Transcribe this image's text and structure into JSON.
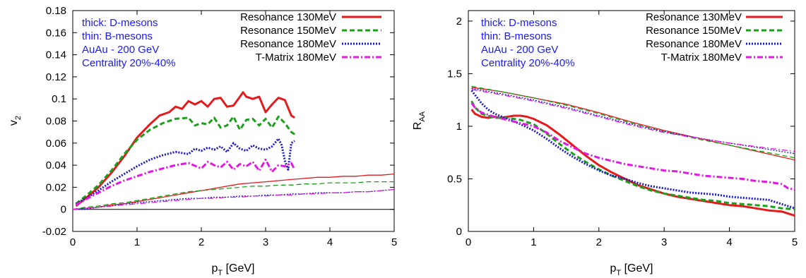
{
  "chart_data": [
    {
      "type": "line",
      "ylabel": {
        "main": "v",
        "sub": "2"
      },
      "xlabel": {
        "main": "p",
        "sub": "T",
        "rest": " [GeV]"
      },
      "xlim": [
        0,
        5
      ],
      "ylim": [
        -0.02,
        0.18
      ],
      "x_ticks": [
        0,
        1,
        2,
        3,
        4,
        5
      ],
      "x_tick_labels": [
        "0",
        "1",
        "2",
        "3",
        "4",
        "5"
      ],
      "y_ticks": [
        -0.02,
        0,
        0.02,
        0.04,
        0.06,
        0.08,
        0.1,
        0.12,
        0.14,
        0.16,
        0.18
      ],
      "y_tick_labels": [
        "-0.02",
        "0",
        "0.02",
        "0.04",
        "0.06",
        "0.08",
        "0.1",
        "0.12",
        "0.14",
        "0.16",
        "0.18"
      ],
      "zero_line": 0,
      "info_text": [
        "thick: D-mesons",
        "thin: B-mesons",
        "AuAu - 200 GeV",
        "Centrality 20%-40%"
      ],
      "legend_position": "top-right",
      "series": [
        {
          "name": "Resonance 130MeV",
          "meson": "D",
          "color": "#e41a1c",
          "dash": "solid",
          "x": [
            0.05,
            0.2,
            0.4,
            0.6,
            0.8,
            1.0,
            1.2,
            1.35,
            1.5,
            1.6,
            1.7,
            1.8,
            1.9,
            2.0,
            2.1,
            2.2,
            2.3,
            2.4,
            2.5,
            2.6,
            2.65,
            2.7,
            2.8,
            2.9,
            3.0,
            3.1,
            3.2,
            3.3,
            3.4,
            3.45
          ],
          "y": [
            0.003,
            0.01,
            0.02,
            0.033,
            0.048,
            0.065,
            0.077,
            0.085,
            0.088,
            0.093,
            0.091,
            0.098,
            0.095,
            0.098,
            0.093,
            0.1,
            0.101,
            0.093,
            0.094,
            0.102,
            0.106,
            0.102,
            0.1,
            0.102,
            0.088,
            0.095,
            0.101,
            0.099,
            0.085,
            0.083
          ]
        },
        {
          "name": "Resonance 150MeV",
          "meson": "D",
          "color": "#1aa01a",
          "dash": "dashed",
          "x": [
            0.05,
            0.2,
            0.4,
            0.6,
            0.8,
            1.0,
            1.2,
            1.4,
            1.6,
            1.8,
            1.9,
            2.0,
            2.1,
            2.2,
            2.3,
            2.4,
            2.5,
            2.6,
            2.7,
            2.8,
            2.9,
            3.0,
            3.1,
            3.2,
            3.3,
            3.4,
            3.45
          ],
          "y": [
            0.005,
            0.012,
            0.022,
            0.035,
            0.05,
            0.063,
            0.072,
            0.078,
            0.082,
            0.083,
            0.076,
            0.078,
            0.077,
            0.083,
            0.074,
            0.076,
            0.084,
            0.072,
            0.081,
            0.082,
            0.076,
            0.082,
            0.074,
            0.084,
            0.078,
            0.07,
            0.068
          ]
        },
        {
          "name": "Resonance 180MeV",
          "meson": "D",
          "color": "#1a1acc",
          "dash": "dotted",
          "x": [
            0.05,
            0.2,
            0.4,
            0.6,
            0.8,
            1.0,
            1.2,
            1.4,
            1.6,
            1.8,
            1.9,
            2.0,
            2.1,
            2.2,
            2.3,
            2.4,
            2.5,
            2.6,
            2.7,
            2.8,
            2.9,
            3.0,
            3.1,
            3.2,
            3.25,
            3.3,
            3.35,
            3.4,
            3.45
          ],
          "y": [
            0.005,
            0.01,
            0.017,
            0.025,
            0.032,
            0.039,
            0.045,
            0.049,
            0.052,
            0.05,
            0.055,
            0.053,
            0.056,
            0.054,
            0.057,
            0.052,
            0.06,
            0.055,
            0.053,
            0.058,
            0.055,
            0.054,
            0.057,
            0.064,
            0.058,
            0.044,
            0.036,
            0.06,
            0.062
          ]
        },
        {
          "name": "T-Matrix 180MeV",
          "meson": "D",
          "color": "#e01ae0",
          "dash": "dashdot",
          "x": [
            0.05,
            0.2,
            0.4,
            0.6,
            0.8,
            1.0,
            1.2,
            1.4,
            1.6,
            1.8,
            2.0,
            2.1,
            2.2,
            2.3,
            2.4,
            2.5,
            2.6,
            2.7,
            2.8,
            2.9,
            3.0,
            3.1,
            3.2,
            3.3,
            3.4,
            3.45
          ],
          "y": [
            0.004,
            0.009,
            0.015,
            0.021,
            0.026,
            0.03,
            0.034,
            0.037,
            0.04,
            0.042,
            0.037,
            0.043,
            0.04,
            0.038,
            0.043,
            0.036,
            0.041,
            0.039,
            0.043,
            0.035,
            0.045,
            0.034,
            0.04,
            0.039,
            0.042,
            0.036
          ]
        },
        {
          "name": "Resonance 130MeV",
          "meson": "B",
          "color": "#e41a1c",
          "dash": "solid",
          "x": [
            0.0,
            0.2,
            0.4,
            0.6,
            0.8,
            1.0,
            1.2,
            1.4,
            1.6,
            1.8,
            2.0,
            2.2,
            2.4,
            2.6,
            2.8,
            3.0,
            3.2,
            3.4,
            3.6,
            3.8,
            4.0,
            4.2,
            4.4,
            4.6,
            4.8,
            5.0
          ],
          "y": [
            0.0,
            0.001,
            0.002,
            0.004,
            0.005,
            0.007,
            0.009,
            0.011,
            0.013,
            0.015,
            0.017,
            0.019,
            0.021,
            0.023,
            0.024,
            0.025,
            0.026,
            0.027,
            0.028,
            0.029,
            0.029,
            0.03,
            0.03,
            0.031,
            0.031,
            0.032
          ]
        },
        {
          "name": "Resonance 150MeV",
          "meson": "B",
          "color": "#1aa01a",
          "dash": "dashed",
          "x": [
            0.0,
            0.2,
            0.4,
            0.6,
            0.8,
            1.0,
            1.2,
            1.4,
            1.6,
            1.8,
            2.0,
            2.2,
            2.4,
            2.6,
            2.8,
            3.0,
            3.2,
            3.4,
            3.6,
            3.8,
            4.0,
            4.2,
            4.4,
            4.6,
            4.8,
            5.0
          ],
          "y": [
            0.0,
            0.002,
            0.003,
            0.005,
            0.006,
            0.008,
            0.01,
            0.012,
            0.014,
            0.016,
            0.017,
            0.018,
            0.019,
            0.02,
            0.021,
            0.021,
            0.022,
            0.022,
            0.023,
            0.023,
            0.024,
            0.024,
            0.024,
            0.025,
            0.025,
            0.025
          ]
        },
        {
          "name": "Resonance 180MeV",
          "meson": "B",
          "color": "#1a1acc",
          "dash": "dotted",
          "x": [
            0.0,
            0.2,
            0.4,
            0.6,
            0.8,
            1.0,
            1.2,
            1.4,
            1.6,
            1.8,
            2.0,
            2.2,
            2.4,
            2.6,
            2.8,
            3.0,
            3.2,
            3.4,
            3.6,
            3.8,
            4.0,
            4.2,
            4.4,
            4.6,
            4.8,
            5.0
          ],
          "y": [
            0.0,
            0.0,
            0.002,
            0.003,
            0.005,
            0.006,
            0.007,
            0.008,
            0.009,
            0.01,
            0.01,
            0.011,
            0.011,
            0.012,
            0.012,
            0.013,
            0.013,
            0.014,
            0.014,
            0.015,
            0.015,
            0.015,
            0.016,
            0.016,
            0.017,
            0.018
          ]
        },
        {
          "name": "T-Matrix 180MeV",
          "meson": "B",
          "color": "#e01ae0",
          "dash": "dashdot",
          "x": [
            0.0,
            0.2,
            0.4,
            0.6,
            0.8,
            1.0,
            1.2,
            1.4,
            1.6,
            1.8,
            2.0,
            2.2,
            2.4,
            2.6,
            2.8,
            3.0,
            3.2,
            3.4,
            3.6,
            3.8,
            4.0,
            4.2,
            4.4,
            4.6,
            4.8,
            5.0
          ],
          "y": [
            0.0,
            0.001,
            0.002,
            0.003,
            0.004,
            0.005,
            0.006,
            0.007,
            0.008,
            0.009,
            0.01,
            0.01,
            0.011,
            0.011,
            0.012,
            0.012,
            0.013,
            0.013,
            0.014,
            0.014,
            0.015,
            0.015,
            0.016,
            0.016,
            0.017,
            0.018
          ]
        }
      ]
    },
    {
      "type": "line",
      "ylabel": {
        "main": "R",
        "sub": "AA"
      },
      "xlabel": {
        "main": "p",
        "sub": "T",
        "rest": " [GeV]"
      },
      "xlim": [
        0,
        5
      ],
      "ylim": [
        0,
        2.1
      ],
      "x_ticks": [
        0,
        1,
        2,
        3,
        4,
        5
      ],
      "x_tick_labels": [
        "0",
        "1",
        "2",
        "3",
        "4",
        "5"
      ],
      "y_ticks": [
        0,
        0.5,
        1,
        1.5,
        2
      ],
      "y_tick_labels": [
        "0",
        "0.5",
        "1",
        "1.5",
        "2"
      ],
      "info_text": [
        "thick: D-mesons",
        "thin: B-mesons",
        "AuAu - 200 GeV",
        "Centrality 20%-40%"
      ],
      "legend_position": "top-right",
      "series": [
        {
          "name": "Resonance 130MeV",
          "meson": "D",
          "color": "#e41a1c",
          "dash": "solid",
          "x": [
            0.05,
            0.1,
            0.2,
            0.3,
            0.4,
            0.5,
            0.6,
            0.7,
            0.8,
            0.9,
            1.0,
            1.2,
            1.4,
            1.6,
            1.8,
            2.0,
            2.2,
            2.4,
            2.6,
            2.8,
            3.0,
            3.2,
            3.4,
            3.6,
            3.8,
            4.0,
            4.2,
            4.4,
            4.6,
            4.8,
            4.9,
            5.0
          ],
          "y": [
            1.16,
            1.12,
            1.09,
            1.08,
            1.09,
            1.08,
            1.09,
            1.1,
            1.1,
            1.09,
            1.07,
            1.01,
            0.92,
            0.82,
            0.72,
            0.63,
            0.56,
            0.5,
            0.44,
            0.4,
            0.36,
            0.33,
            0.31,
            0.29,
            0.27,
            0.25,
            0.24,
            0.22,
            0.2,
            0.19,
            0.17,
            0.15
          ]
        },
        {
          "name": "Resonance 150MeV",
          "meson": "D",
          "color": "#1aa01a",
          "dash": "dashed",
          "x": [
            0.05,
            0.1,
            0.2,
            0.4,
            0.6,
            0.8,
            1.0,
            1.2,
            1.4,
            1.6,
            1.8,
            2.0,
            2.2,
            2.4,
            2.6,
            2.8,
            3.0,
            3.2,
            3.4,
            3.6,
            3.8,
            4.0,
            4.2,
            4.4,
            4.6,
            4.8,
            5.0
          ],
          "y": [
            1.24,
            1.18,
            1.12,
            1.08,
            1.08,
            1.06,
            1.02,
            0.93,
            0.83,
            0.74,
            0.66,
            0.59,
            0.53,
            0.48,
            0.43,
            0.39,
            0.36,
            0.34,
            0.32,
            0.3,
            0.29,
            0.27,
            0.26,
            0.25,
            0.24,
            0.22,
            0.21
          ]
        },
        {
          "name": "Resonance 180MeV",
          "meson": "D",
          "color": "#1a1acc",
          "dash": "dotted",
          "x": [
            0.05,
            0.1,
            0.2,
            0.3,
            0.4,
            0.6,
            0.8,
            1.0,
            1.2,
            1.4,
            1.6,
            1.8,
            2.0,
            2.2,
            2.4,
            2.6,
            2.8,
            3.0,
            3.2,
            3.4,
            3.6,
            3.8,
            4.0,
            4.2,
            4.4,
            4.6,
            4.8,
            5.0
          ],
          "y": [
            1.34,
            1.3,
            1.22,
            1.16,
            1.12,
            1.07,
            1.02,
            0.96,
            0.88,
            0.79,
            0.71,
            0.64,
            0.58,
            0.53,
            0.5,
            0.46,
            0.43,
            0.41,
            0.39,
            0.37,
            0.36,
            0.35,
            0.33,
            0.32,
            0.31,
            0.3,
            0.26,
            0.22
          ]
        },
        {
          "name": "T-Matrix 180MeV",
          "meson": "D",
          "color": "#e01ae0",
          "dash": "dashdot",
          "x": [
            0.05,
            0.1,
            0.2,
            0.4,
            0.6,
            0.8,
            1.0,
            1.2,
            1.4,
            1.6,
            1.8,
            2.0,
            2.2,
            2.4,
            2.6,
            2.8,
            3.0,
            3.2,
            3.4,
            3.6,
            3.8,
            4.0,
            4.2,
            4.4,
            4.6,
            4.8,
            4.9,
            5.0
          ],
          "y": [
            1.22,
            1.18,
            1.13,
            1.09,
            1.06,
            1.03,
            1.0,
            0.94,
            0.86,
            0.8,
            0.74,
            0.7,
            0.67,
            0.64,
            0.62,
            0.6,
            0.58,
            0.57,
            0.55,
            0.53,
            0.52,
            0.51,
            0.5,
            0.48,
            0.47,
            0.45,
            0.41,
            0.4
          ]
        },
        {
          "name": "Resonance 130MeV",
          "meson": "B",
          "color": "#e41a1c",
          "dash": "solid",
          "x": [
            0.05,
            0.5,
            1.0,
            1.5,
            2.0,
            2.5,
            3.0,
            3.5,
            4.0,
            4.5,
            5.0
          ],
          "y": [
            1.37,
            1.33,
            1.27,
            1.21,
            1.13,
            1.04,
            0.96,
            0.89,
            0.82,
            0.75,
            0.68
          ]
        },
        {
          "name": "Resonance 150MeV",
          "meson": "B",
          "color": "#1aa01a",
          "dash": "dashed",
          "x": [
            0.05,
            0.5,
            1.0,
            1.5,
            2.0,
            2.5,
            3.0,
            3.5,
            4.0,
            4.5,
            5.0
          ],
          "y": [
            1.38,
            1.33,
            1.27,
            1.2,
            1.12,
            1.03,
            0.95,
            0.88,
            0.82,
            0.76,
            0.7
          ]
        },
        {
          "name": "Resonance 180MeV",
          "meson": "B",
          "color": "#1a1acc",
          "dash": "dotted",
          "x": [
            0.05,
            0.5,
            1.0,
            1.5,
            2.0,
            2.5,
            3.0,
            3.5,
            4.0,
            4.5,
            5.0
          ],
          "y": [
            1.36,
            1.31,
            1.25,
            1.18,
            1.1,
            1.02,
            0.95,
            0.89,
            0.84,
            0.79,
            0.74
          ]
        },
        {
          "name": "T-Matrix 180MeV",
          "meson": "B",
          "color": "#e01ae0",
          "dash": "dashdot",
          "x": [
            0.05,
            0.5,
            1.0,
            1.5,
            2.0,
            2.5,
            3.0,
            3.5,
            4.0,
            4.5,
            5.0
          ],
          "y": [
            1.35,
            1.3,
            1.24,
            1.17,
            1.09,
            1.01,
            0.94,
            0.89,
            0.84,
            0.8,
            0.76
          ]
        }
      ]
    }
  ]
}
